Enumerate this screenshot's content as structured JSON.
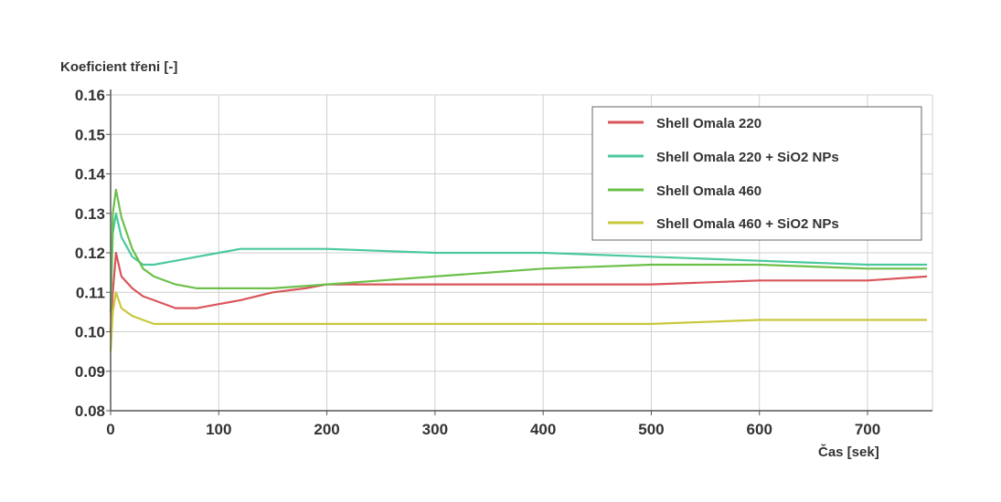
{
  "chart_data": {
    "type": "line",
    "title": "",
    "xlabel": "Čas [sek]",
    "ylabel": "Koeficient třeni [-]",
    "xlim": [
      0,
      760
    ],
    "ylim": [
      0.08,
      0.16
    ],
    "x_ticks": [
      0,
      100,
      200,
      300,
      400,
      500,
      600,
      700
    ],
    "y_ticks": [
      0.08,
      0.09,
      0.1,
      0.11,
      0.12,
      0.13,
      0.14,
      0.15,
      0.16
    ],
    "x_tick_labels": [
      "0",
      "100",
      "200",
      "300",
      "400",
      "500",
      "600",
      "700"
    ],
    "y_tick_labels": [
      "0.08",
      "0.09",
      "0.10",
      "0.11",
      "0.12",
      "0.13",
      "0.14",
      "0.15",
      "0.16"
    ],
    "grid": true,
    "legend_position": "top-right",
    "series": [
      {
        "name": "Shell Omala 220",
        "color": "#d9555a",
        "x": [
          0,
          2,
          5,
          10,
          20,
          30,
          40,
          60,
          80,
          100,
          120,
          150,
          180,
          200,
          250,
          300,
          400,
          500,
          600,
          700,
          755
        ],
        "y": [
          0.1,
          0.11,
          0.12,
          0.114,
          0.111,
          0.109,
          0.108,
          0.106,
          0.106,
          0.107,
          0.108,
          0.11,
          0.111,
          0.112,
          0.112,
          0.112,
          0.112,
          0.112,
          0.113,
          0.113,
          0.114
        ]
      },
      {
        "name": "Shell Omala 220 + SiO2 NPs",
        "color": "#4bc99e",
        "x": [
          0,
          2,
          5,
          10,
          20,
          30,
          40,
          60,
          80,
          100,
          120,
          150,
          200,
          300,
          400,
          500,
          600,
          700,
          755
        ],
        "y": [
          0.105,
          0.125,
          0.13,
          0.124,
          0.119,
          0.117,
          0.117,
          0.118,
          0.119,
          0.12,
          0.121,
          0.121,
          0.121,
          0.12,
          0.12,
          0.119,
          0.118,
          0.117,
          0.117
        ]
      },
      {
        "name": "Shell Omala 460",
        "color": "#6cc04a",
        "x": [
          0,
          2,
          5,
          10,
          20,
          30,
          40,
          60,
          80,
          100,
          120,
          150,
          200,
          250,
          300,
          350,
          400,
          500,
          600,
          700,
          755
        ],
        "y": [
          0.105,
          0.13,
          0.136,
          0.129,
          0.121,
          0.116,
          0.114,
          0.112,
          0.111,
          0.111,
          0.111,
          0.111,
          0.112,
          0.113,
          0.114,
          0.115,
          0.116,
          0.117,
          0.117,
          0.116,
          0.116
        ]
      },
      {
        "name": "Shell Omala 460 + SiO2 NPs",
        "color": "#c9c83d",
        "x": [
          0,
          2,
          5,
          10,
          20,
          30,
          40,
          60,
          80,
          100,
          150,
          200,
          300,
          400,
          500,
          600,
          700,
          755
        ],
        "y": [
          0.095,
          0.105,
          0.11,
          0.106,
          0.104,
          0.103,
          0.102,
          0.102,
          0.102,
          0.102,
          0.102,
          0.102,
          0.102,
          0.102,
          0.102,
          0.103,
          0.103,
          0.103
        ]
      }
    ]
  }
}
